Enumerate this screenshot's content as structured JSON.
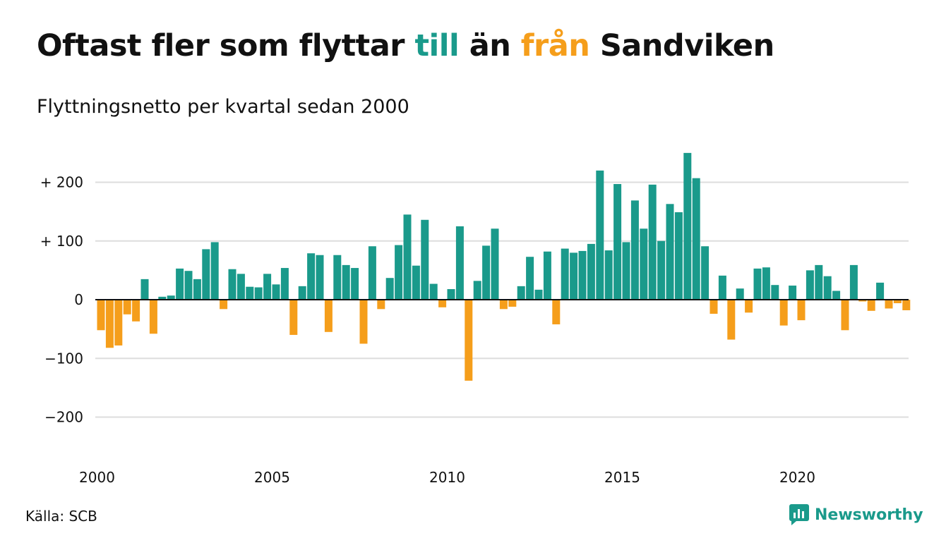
{
  "title": {
    "part1": "Oftast fler som flyttar ",
    "till": "till",
    "part2": " än ",
    "fran": "från",
    "part3": " Sandviken"
  },
  "subtitle": "Flyttningsnetto per kvartal sedan 2000",
  "source": "Källa: SCB",
  "brand": {
    "label": "Newsworthy",
    "icon": "newsworthy-logo-icon"
  },
  "colors": {
    "positive": "#1a9a8b",
    "negative": "#f59e1b",
    "grid": "#dddddd",
    "zero": "#111111"
  },
  "chart_data": {
    "type": "bar",
    "title": "Oftast fler som flyttar till än från Sandviken",
    "subtitle": "Flyttningsnetto per kvartal sedan 2000",
    "x_start": "2000 Q1",
    "x_ticks": [
      "2000",
      "2005",
      "2010",
      "2015",
      "2020"
    ],
    "y_ticks": [
      -200,
      -100,
      0,
      100,
      200
    ],
    "y_tick_labels": [
      "−200",
      "−100",
      "0",
      "+ 100",
      "+ 200"
    ],
    "ylim": [
      -270,
      260
    ],
    "grid": true,
    "values": [
      -52,
      -82,
      -78,
      -25,
      -37,
      35,
      -58,
      5,
      7,
      53,
      49,
      35,
      86,
      98,
      -16,
      52,
      44,
      22,
      21,
      44,
      26,
      54,
      -60,
      23,
      79,
      76,
      -55,
      76,
      59,
      54,
      -75,
      91,
      -16,
      37,
      93,
      145,
      58,
      136,
      27,
      -13,
      18,
      125,
      -138,
      32,
      92,
      121,
      -16,
      -12,
      23,
      73,
      17,
      82,
      -42,
      87,
      80,
      83,
      95,
      220,
      84,
      197,
      98,
      169,
      121,
      196,
      100,
      163,
      149,
      250,
      207,
      91,
      -24,
      41,
      -68,
      19,
      -22,
      53,
      55,
      25,
      -44,
      24,
      -35,
      50,
      59,
      40,
      15,
      -52,
      59,
      -3,
      -19,
      29,
      -15,
      -6,
      -18
    ]
  }
}
